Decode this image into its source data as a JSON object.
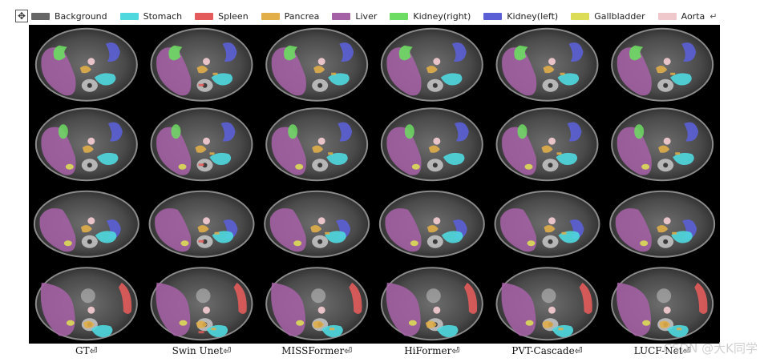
{
  "legend": {
    "items": [
      {
        "label": "Background",
        "color": "#666666"
      },
      {
        "label": "Stomach",
        "color": "#4fd9df"
      },
      {
        "label": "Spleen",
        "color": "#e35b5b"
      },
      {
        "label": "Pancrea",
        "color": "#e1ae4a"
      },
      {
        "label": "Liver",
        "color": "#a561a6"
      },
      {
        "label": "Kidney(right)",
        "color": "#6ddc62"
      },
      {
        "label": "Kidney(left)",
        "color": "#5b5fd6"
      },
      {
        "label": "Gallbladder",
        "color": "#dcdc57"
      },
      {
        "label": "Aorta",
        "color": "#efc8cc"
      }
    ],
    "trailing_mark": "↵"
  },
  "columns": [
    "GT",
    "Swin Unet",
    "MISSFormer",
    "HiFormer",
    "PVT-Cascade",
    "LUCF-Net"
  ],
  "caption_mark": "⏎",
  "watermark": "CSDN @大K同学"
}
